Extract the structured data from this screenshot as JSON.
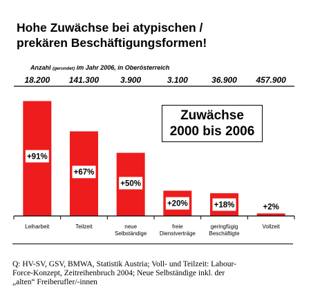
{
  "title_lines": [
    "Hohe Zuwächse bei atypischen /",
    "prekären Beschäftigungsformen!"
  ],
  "subheader": {
    "prefix": "Anzahl",
    "small": "(gerundet)",
    "suffix": "im Jahr 2006, in Oberösterreich"
  },
  "callout": {
    "line1": "Zuwächse",
    "line2": "2000 bis 2006"
  },
  "source_lines": [
    "Q: HV-SV, GSV, BMWA, Statistik Austria; Voll- und Teilzeit: Labour-",
    "Force-Konzept, Zeitreihenbruch 2004; Neue Selbständige inkl. der",
    "„alten“ Freiberufler/-innen"
  ],
  "chart_data": {
    "type": "bar",
    "title": "Hohe Zuwächse bei atypischen / prekären Beschäftigungsformen!",
    "categories": [
      [
        "Leiharbeit"
      ],
      [
        "Teilzeit"
      ],
      [
        "neue",
        "Selbständige"
      ],
      [
        "freie",
        "Dienstverträge"
      ],
      [
        "geringfügig",
        "Beschäftigte"
      ],
      [
        "Vollzeit"
      ]
    ],
    "values": [
      91,
      67,
      50,
      20,
      18,
      2
    ],
    "value_labels": [
      "+91%",
      "+67%",
      "+50%",
      "+20%",
      "+18%",
      "+2%"
    ],
    "counts_2006": [
      "18.200",
      "141.300",
      "3.900",
      "3.100",
      "36.900",
      "457.900"
    ],
    "ylim": [
      0,
      100
    ],
    "bar_color": "#ee1c1c",
    "legend": "none",
    "grid": false
  }
}
